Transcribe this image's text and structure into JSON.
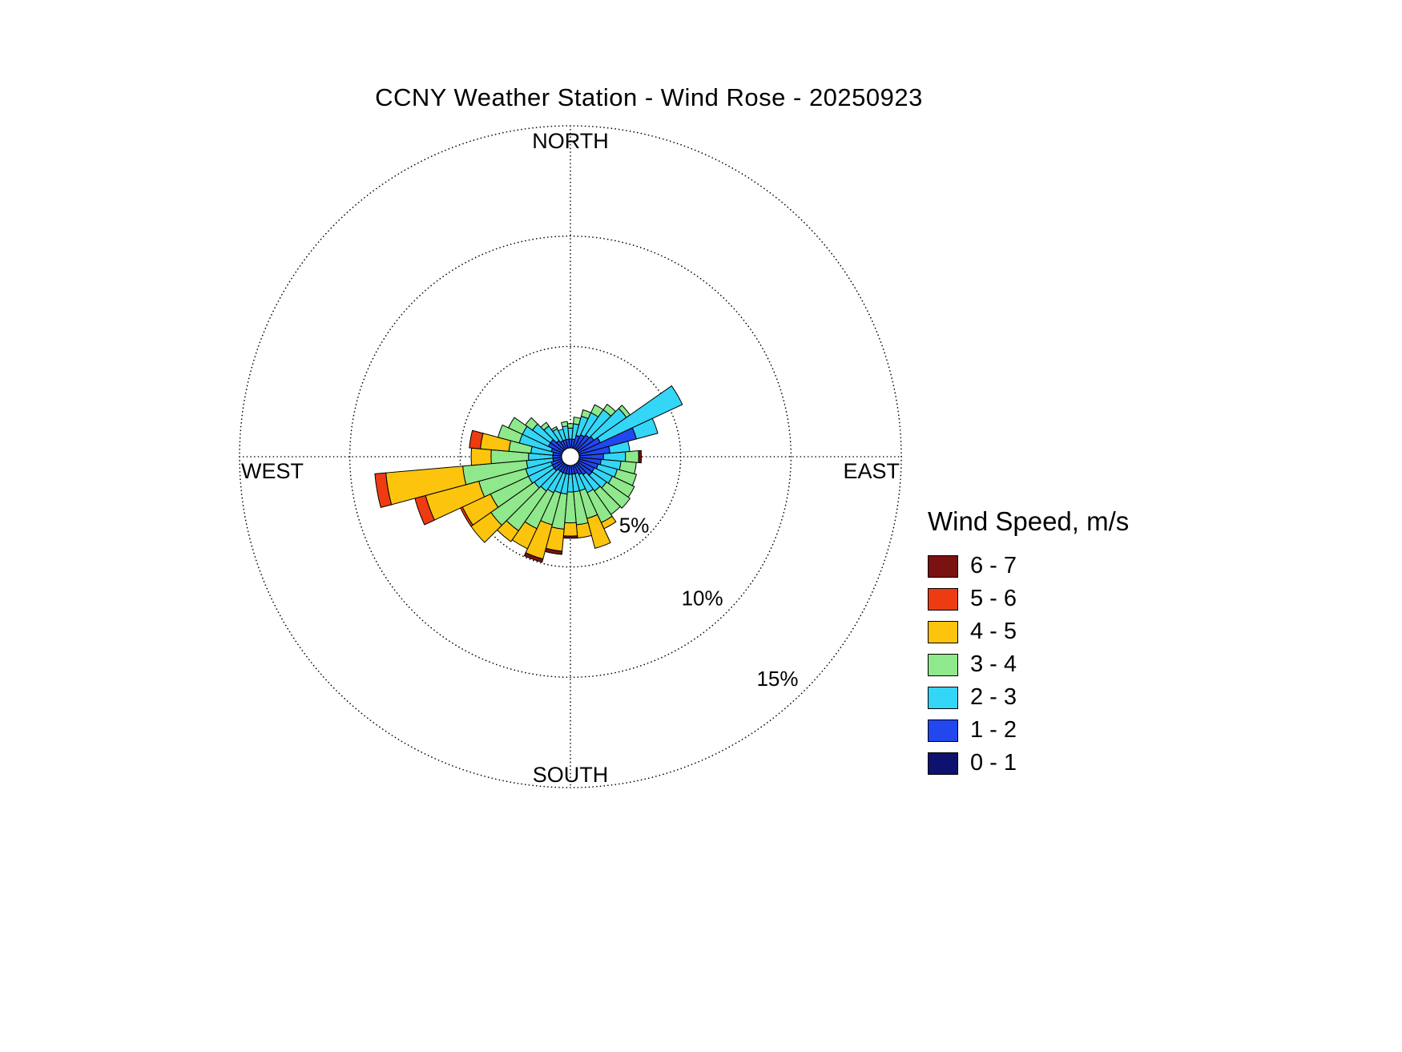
{
  "title": "CCNY Weather Station - Wind Rose - 20250923",
  "compass": {
    "north": "NORTH",
    "south": "SOUTH",
    "east": "EAST",
    "west": "WEST"
  },
  "legend": {
    "title": "Wind Speed, m/s"
  },
  "chart_data": {
    "type": "wind_rose",
    "units": "percent frequency",
    "title": "CCNY Weather Station - Wind Rose - 20250923",
    "ring_labels": [
      "5%",
      "10%",
      "15%"
    ],
    "ring_values": [
      5,
      10,
      15
    ],
    "max_ring_percent": 15,
    "grid": "dotted",
    "legend_position": "right",
    "direction_step_deg": 10,
    "bins": [
      {
        "label": "0 - 1",
        "color": "#0d1270"
      },
      {
        "label": "1 - 2",
        "color": "#2247ee"
      },
      {
        "label": "2 - 3",
        "color": "#33d6f6"
      },
      {
        "label": "3 - 4",
        "color": "#8fe88b"
      },
      {
        "label": "4 - 5",
        "color": "#fcc40c"
      },
      {
        "label": "5 - 6",
        "color": "#ee3b12"
      },
      {
        "label": "6 - 7",
        "color": "#7a1212"
      }
    ],
    "directions_deg": [
      0,
      10,
      20,
      30,
      40,
      50,
      60,
      70,
      80,
      90,
      100,
      110,
      120,
      130,
      140,
      150,
      160,
      170,
      180,
      190,
      200,
      210,
      220,
      230,
      240,
      250,
      260,
      270,
      280,
      290,
      300,
      310,
      320,
      330,
      340,
      350
    ],
    "frequencies": [
      [
        0.3,
        0.5,
        0.5,
        0.2,
        0,
        0,
        0
      ],
      [
        0.3,
        0.5,
        0.7,
        0.3,
        0,
        0,
        0
      ],
      [
        0.3,
        0.7,
        0.9,
        0.3,
        0,
        0,
        0
      ],
      [
        0.3,
        0.8,
        1.1,
        0.4,
        0,
        0,
        0
      ],
      [
        0.3,
        0.9,
        1.4,
        0.3,
        0,
        0,
        0
      ],
      [
        0.3,
        1.0,
        1.8,
        0.2,
        0,
        0,
        0
      ],
      [
        0.4,
        1.1,
        4.1,
        0,
        0,
        0,
        0
      ],
      [
        0.4,
        2.7,
        1.0,
        0,
        0,
        0,
        0
      ],
      [
        0.4,
        1.4,
        0.9,
        0,
        0,
        0,
        0
      ],
      [
        0.4,
        1.1,
        1.0,
        0.6,
        0,
        0,
        0.12
      ],
      [
        0.4,
        1.0,
        0.9,
        0.7,
        0,
        0,
        0
      ],
      [
        0.4,
        0.9,
        0.9,
        0.9,
        0,
        0,
        0
      ],
      [
        0.4,
        0.8,
        0.9,
        1.1,
        0,
        0,
        0
      ],
      [
        0.4,
        0.8,
        0.8,
        1.3,
        0,
        0,
        0
      ],
      [
        0.3,
        0.7,
        0.9,
        1.3,
        0,
        0,
        0
      ],
      [
        0.3,
        0.6,
        0.9,
        1.5,
        0.3,
        0,
        0
      ],
      [
        0.3,
        0.5,
        0.8,
        1.3,
        1.4,
        0,
        0
      ],
      [
        0.3,
        0.5,
        0.8,
        1.5,
        0.6,
        0,
        0
      ],
      [
        0.3,
        0.5,
        0.8,
        1.4,
        0.6,
        0,
        0.1
      ],
      [
        0.3,
        0.5,
        0.9,
        1.6,
        1.0,
        0,
        0.15
      ],
      [
        0.3,
        0.5,
        0.9,
        1.5,
        1.6,
        0,
        0.15
      ],
      [
        0.3,
        0.5,
        1.0,
        1.8,
        1.0,
        0,
        0
      ],
      [
        0.3,
        0.5,
        1.1,
        2.2,
        0.6,
        0,
        0
      ],
      [
        0.3,
        0.6,
        1.1,
        2.4,
        1.1,
        0,
        0
      ],
      [
        0.3,
        0.6,
        1.2,
        1.9,
        1.4,
        0.1,
        0
      ],
      [
        0.3,
        0.6,
        1.2,
        2.2,
        2.5,
        0.5,
        0
      ],
      [
        0.3,
        0.5,
        1.2,
        2.9,
        3.5,
        0.5,
        0
      ],
      [
        0.3,
        0.5,
        1.1,
        1.7,
        0.9,
        0,
        0
      ],
      [
        0.3,
        0.5,
        1.0,
        1.0,
        1.3,
        0.5,
        0
      ],
      [
        0.3,
        0.6,
        1.5,
        1.0,
        0,
        0,
        0
      ],
      [
        0.3,
        0.8,
        1.3,
        0.7,
        0,
        0,
        0
      ],
      [
        0.3,
        0.8,
        1.0,
        0.4,
        0,
        0,
        0
      ],
      [
        0.3,
        0.6,
        0.8,
        0.2,
        0,
        0,
        0
      ],
      [
        0.3,
        0.5,
        0.6,
        0.1,
        0,
        0,
        0
      ],
      [
        0.3,
        0.5,
        0.5,
        0,
        0,
        0,
        0
      ],
      [
        0.3,
        0.5,
        0.6,
        0.2,
        0,
        0,
        0
      ]
    ]
  }
}
